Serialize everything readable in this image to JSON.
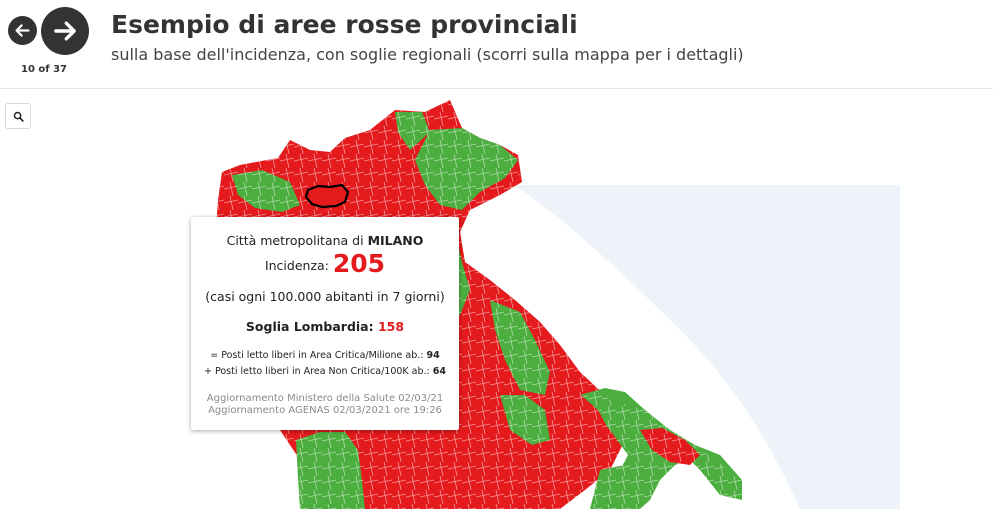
{
  "nav": {
    "prev_icon": "arrow-left-icon",
    "next_icon": "arrow-right-icon",
    "counter": "10 of 37"
  },
  "header": {
    "title": "Esempio di aree rosse provinciali",
    "subtitle": "sulla base dell'incidenza, con soglie regionali (scorri sulla mappa per i dettagli)"
  },
  "search": {
    "icon": "search-icon"
  },
  "colors": {
    "red": "#e41a1c",
    "green": "#4cae3f",
    "water": "#dde8f6",
    "highlight": "#e41a1c"
  },
  "tooltip": {
    "line1_prefix": "Città metropolitana di",
    "province": "MILANO",
    "incidence_label": "Incidenza:",
    "incidence_value": "205",
    "cases_note": "(casi ogni 100.000 abitanti in 7 giorni)",
    "threshold_label": "Soglia Lombardia:",
    "threshold_value": "158",
    "beds_critical_label": "= Posti letto liberi in Area Critica/Milione ab.:",
    "beds_critical_value": "94",
    "beds_noncritical_label": "+ Posti letto liberi in Area Non Critica/100K ab.:",
    "beds_noncritical_value": "64",
    "update_ministry": "Aggiornamento Ministero della Salute 02/03/21",
    "update_agenas": "Aggiornamento AGENAS 02/03/2021 ore 19:26"
  }
}
